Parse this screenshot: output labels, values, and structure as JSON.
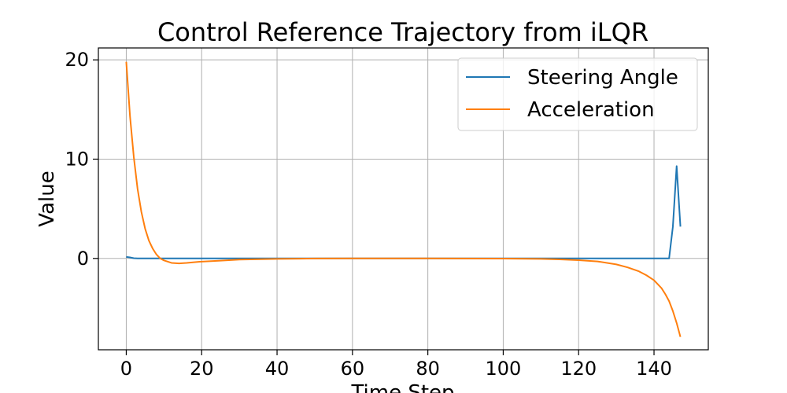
{
  "chart_data": {
    "type": "line",
    "title": "Control Reference Trajectory from iLQR",
    "xlabel": "Time Step",
    "ylabel": "Value",
    "xlim": [
      -7.4,
      154.4
    ],
    "ylim": [
      -9.2,
      21.2
    ],
    "xticks": [
      0,
      20,
      40,
      60,
      80,
      100,
      120,
      140
    ],
    "yticks": [
      0,
      10,
      20
    ],
    "grid": true,
    "legend_position": "top-right",
    "series": [
      {
        "name": "Steering Angle",
        "color": "#1f77b4",
        "x": [
          0,
          1,
          2,
          3,
          5,
          10,
          20,
          40,
          60,
          80,
          100,
          120,
          130,
          140,
          144,
          145,
          146,
          147
        ],
        "y": [
          0.15,
          0.1,
          0.02,
          0.0,
          0.0,
          0.0,
          0.0,
          0.0,
          0.0,
          0.0,
          0.0,
          0.0,
          0.0,
          0.0,
          0.0,
          3.2,
          9.3,
          3.2
        ]
      },
      {
        "name": "Acceleration",
        "color": "#ff7f0e",
        "x": [
          0,
          1,
          2,
          3,
          4,
          5,
          6,
          7,
          8,
          9,
          10,
          12,
          14,
          16,
          18,
          20,
          25,
          30,
          40,
          50,
          60,
          80,
          100,
          110,
          115,
          120,
          125,
          130,
          133,
          136,
          138,
          140,
          142,
          143,
          144,
          145,
          146,
          147
        ],
        "y": [
          19.8,
          14.3,
          10.2,
          7.0,
          4.7,
          3.0,
          1.8,
          1.0,
          0.4,
          0.0,
          -0.2,
          -0.45,
          -0.5,
          -0.45,
          -0.38,
          -0.32,
          -0.22,
          -0.12,
          -0.05,
          -0.01,
          0.0,
          0.0,
          -0.02,
          -0.05,
          -0.1,
          -0.18,
          -0.3,
          -0.6,
          -0.9,
          -1.3,
          -1.7,
          -2.2,
          -3.0,
          -3.6,
          -4.3,
          -5.3,
          -6.5,
          -7.9
        ]
      }
    ]
  }
}
